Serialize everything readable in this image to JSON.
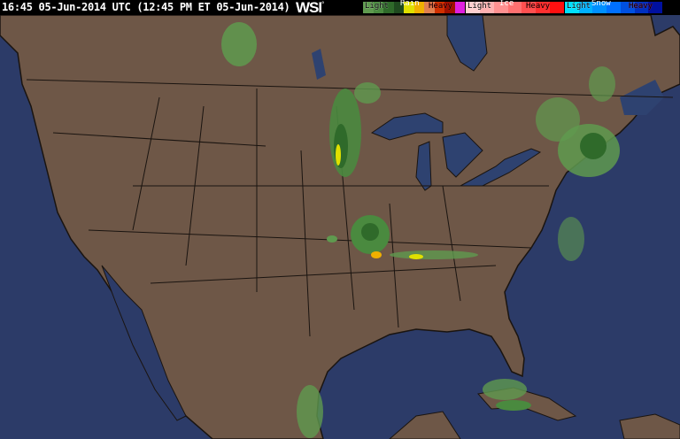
{
  "header": {
    "timestamp": "16:45 05-Jun-2014 UTC (12:45 PM ET 05-Jun-2014)",
    "logo": "WSI",
    "logo_mark": "°"
  },
  "legend": [
    {
      "type": "Rain",
      "light": "Light",
      "heavy": "Heavy",
      "colors": [
        "#5f9a4f",
        "#4a8a3f",
        "#2f6a2a",
        "#1f4a1f",
        "#e0e000",
        "#f0b000",
        "#e08050",
        "#d03000",
        "#a01000",
        "#e020e0"
      ]
    },
    {
      "type": "Ice",
      "light": "Light",
      "heavy": "Heavy",
      "colors": [
        "#ffd0d0",
        "#ffb0b0",
        "#ff9090",
        "#ff7070",
        "#ff5050",
        "#ff3030",
        "#ff1010"
      ]
    },
    {
      "type": "Snow",
      "light": "Light",
      "heavy": "Heavy",
      "colors": [
        "#00e0ff",
        "#00b0ff",
        "#0090ff",
        "#0070ff",
        "#0050e0",
        "#0030c0",
        "#0010a0"
      ]
    }
  ],
  "map": {
    "colors": {
      "land": "#6e5747",
      "water": "#2c3b68",
      "borders": "#1a1410",
      "radar_light": "#5f9a4f",
      "radar_mid": "#2f6a2a",
      "radar_heavy": "#e0e000"
    }
  }
}
